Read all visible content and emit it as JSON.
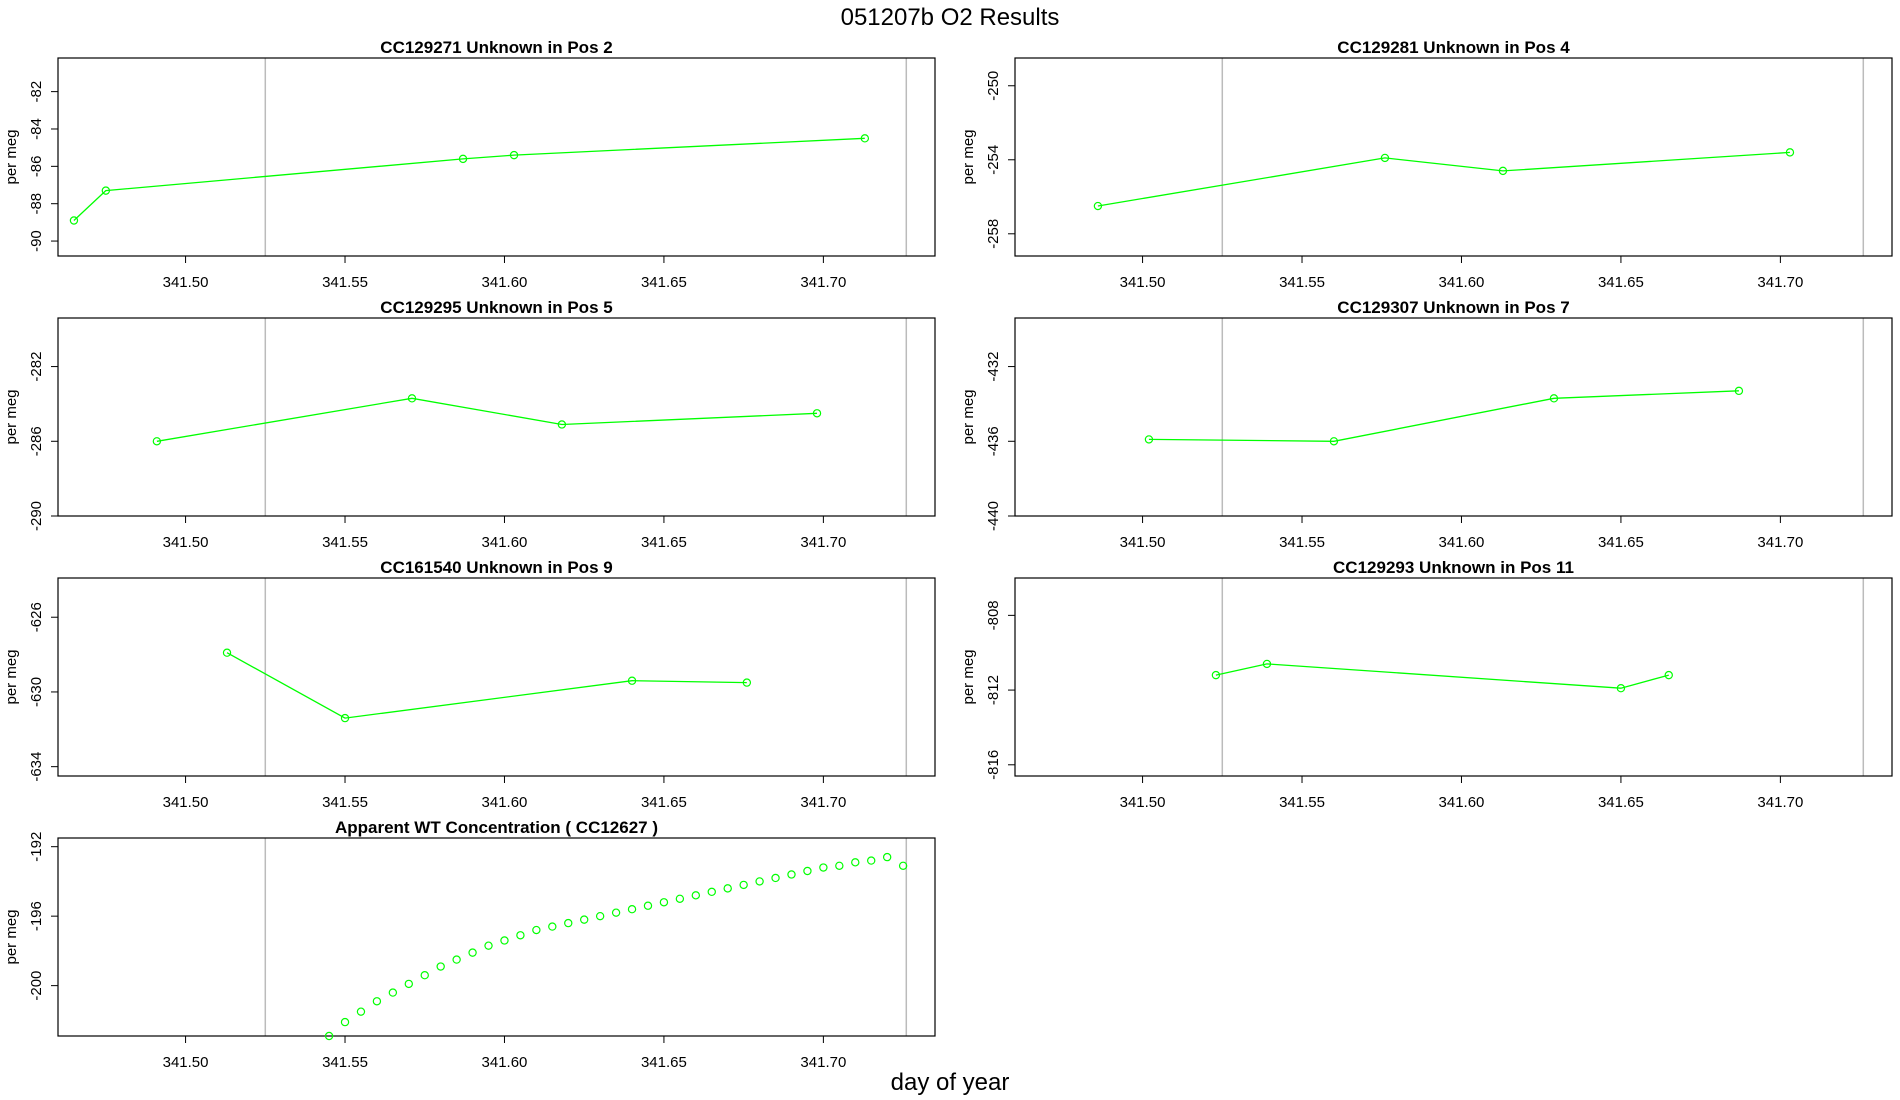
{
  "figure": {
    "title": "051207b  O2 Results",
    "xlabel": "day of year",
    "series_color": "#00ff00",
    "marker_color": "#00ff00",
    "frame_color": "#000000",
    "vline_color": "#bbbbbb"
  },
  "chart_data": [
    {
      "type": "line",
      "title": "CC129271    Unknown in Pos 2",
      "ylabel": "per meg",
      "xlim": [
        341.46,
        341.735
      ],
      "xticks": [
        "341.50",
        "341.55",
        "341.60",
        "341.65",
        "341.70"
      ],
      "yticks": [
        "-82",
        "-84",
        "-86",
        "-88",
        "-90"
      ],
      "ylim": [
        -90.8,
        -80.2
      ],
      "vlines": [
        341.525,
        341.726
      ],
      "x": [
        341.465,
        341.475,
        341.587,
        341.603,
        341.713
      ],
      "y": [
        -88.9,
        -87.3,
        -85.6,
        -85.4,
        -84.5
      ]
    },
    {
      "type": "line",
      "title": "CC129281    Unknown in Pos 4",
      "ylabel": "per meg",
      "xlim": [
        341.46,
        341.735
      ],
      "xticks": [
        "341.50",
        "341.55",
        "341.60",
        "341.65",
        "341.70"
      ],
      "yticks": [
        "-250",
        "-254",
        "-258"
      ],
      "ylim": [
        -259.2,
        -248.5
      ],
      "vlines": [
        341.525,
        341.726
      ],
      "x": [
        341.486,
        341.576,
        341.613,
        341.703
      ],
      "y": [
        -256.5,
        -253.9,
        -254.6,
        -253.6
      ]
    },
    {
      "type": "line",
      "title": "CC129295    Unknown in Pos 5",
      "ylabel": "per meg",
      "xlim": [
        341.46,
        341.735
      ],
      "xticks": [
        "341.50",
        "341.55",
        "341.60",
        "341.65",
        "341.70"
      ],
      "yticks": [
        "-282",
        "-286",
        "-290"
      ],
      "ylim": [
        -290.0,
        -279.4
      ],
      "vlines": [
        341.525,
        341.726
      ],
      "x": [
        341.491,
        341.571,
        341.618,
        341.698
      ],
      "y": [
        -286.0,
        -283.7,
        -285.1,
        -284.5
      ]
    },
    {
      "type": "line",
      "title": "CC129307    Unknown in Pos 7",
      "ylabel": "per meg",
      "xlim": [
        341.46,
        341.735
      ],
      "xticks": [
        "341.50",
        "341.55",
        "341.60",
        "341.65",
        "341.70"
      ],
      "yticks": [
        "-432",
        "-436",
        "-440"
      ],
      "ylim": [
        -440.0,
        -429.4
      ],
      "vlines": [
        341.525,
        341.726
      ],
      "x": [
        341.502,
        341.56,
        341.629,
        341.687
      ],
      "y": [
        -435.9,
        -436.0,
        -433.7,
        -433.3
      ]
    },
    {
      "type": "line",
      "title": "CC161540    Unknown in Pos 9",
      "ylabel": "per meg",
      "xlim": [
        341.46,
        341.735
      ],
      "xticks": [
        "341.50",
        "341.55",
        "341.60",
        "341.65",
        "341.70"
      ],
      "yticks": [
        "-626",
        "-630",
        "-634"
      ],
      "ylim": [
        -634.5,
        -623.9
      ],
      "vlines": [
        341.525,
        341.726
      ],
      "x": [
        341.513,
        341.55,
        341.64,
        341.676
      ],
      "y": [
        -627.9,
        -631.4,
        -629.4,
        -629.5
      ]
    },
    {
      "type": "line",
      "title": "CC129293    Unknown in Pos 11",
      "ylabel": "per meg",
      "xlim": [
        341.46,
        341.735
      ],
      "xticks": [
        "341.50",
        "341.55",
        "341.60",
        "341.65",
        "341.70"
      ],
      "yticks": [
        "-808",
        "-812",
        "-816"
      ],
      "ylim": [
        -816.6,
        -806.0
      ],
      "vlines": [
        341.525,
        341.726
      ],
      "x": [
        341.523,
        341.539,
        341.65,
        341.665
      ],
      "y": [
        -811.2,
        -810.6,
        -811.9,
        -811.2
      ]
    },
    {
      "type": "scatter",
      "title": "Apparent WT Concentration ( CC12627 )",
      "ylabel": "per meg",
      "xlim": [
        341.46,
        341.735
      ],
      "xticks": [
        "341.50",
        "341.55",
        "341.60",
        "341.65",
        "341.70"
      ],
      "yticks": [
        "-192",
        "-196",
        "-200"
      ],
      "ylim": [
        -202.9,
        -191.5
      ],
      "vlines": [
        341.525,
        341.726
      ],
      "x": [
        341.545,
        341.55,
        341.555,
        341.56,
        341.565,
        341.57,
        341.575,
        341.58,
        341.585,
        341.59,
        341.595,
        341.6,
        341.605,
        341.61,
        341.615,
        341.62,
        341.625,
        341.63,
        341.635,
        341.64,
        341.645,
        341.65,
        341.655,
        341.66,
        341.665,
        341.67,
        341.675,
        341.68,
        341.685,
        341.69,
        341.695,
        341.7,
        341.705,
        341.71,
        341.715,
        341.72,
        341.725
      ],
      "y": [
        -202.9,
        -202.1,
        -201.5,
        -200.9,
        -200.4,
        -199.9,
        -199.4,
        -198.9,
        -198.5,
        -198.1,
        -197.7,
        -197.4,
        -197.1,
        -196.8,
        -196.6,
        -196.4,
        -196.2,
        -196.0,
        -195.8,
        -195.6,
        -195.4,
        -195.2,
        -195.0,
        -194.8,
        -194.6,
        -194.4,
        -194.2,
        -194.0,
        -193.8,
        -193.6,
        -193.4,
        -193.2,
        -193.1,
        -192.9,
        -192.8,
        -192.6,
        -193.1
      ]
    }
  ]
}
